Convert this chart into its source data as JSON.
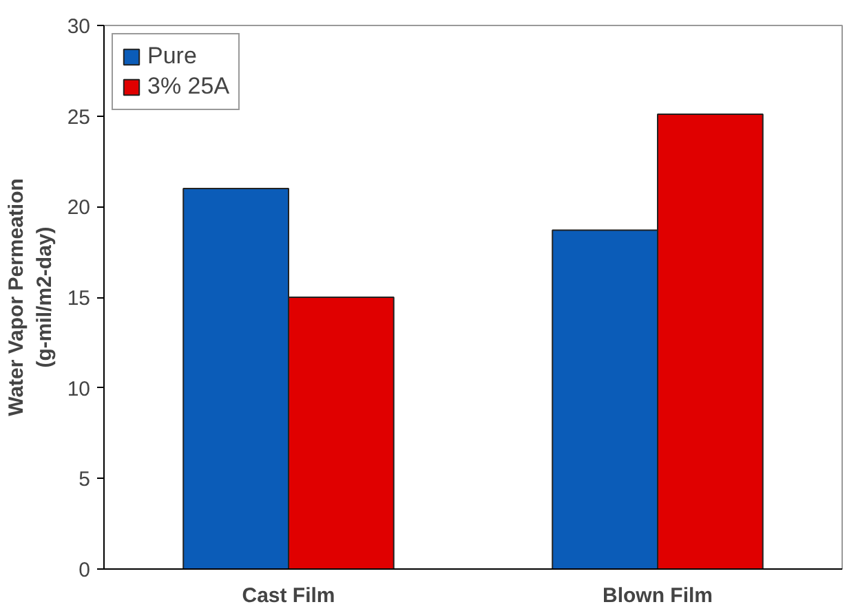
{
  "chart_data": {
    "type": "bar",
    "ylabel": "Water Vapor Permeation\n(g-mil/m2-day)",
    "categories": [
      "Cast Film",
      "Blown Film"
    ],
    "series": [
      {
        "name": "Pure",
        "color": "#0b5cb8",
        "values": [
          21.0,
          18.7
        ]
      },
      {
        "name": "3% 25A",
        "color": "#e00000",
        "values": [
          15.0,
          25.1
        ]
      }
    ],
    "ylim": [
      0,
      30
    ],
    "yticks": [
      0,
      5,
      10,
      15,
      20,
      25,
      30
    ],
    "grid": false,
    "legend": "top left"
  }
}
